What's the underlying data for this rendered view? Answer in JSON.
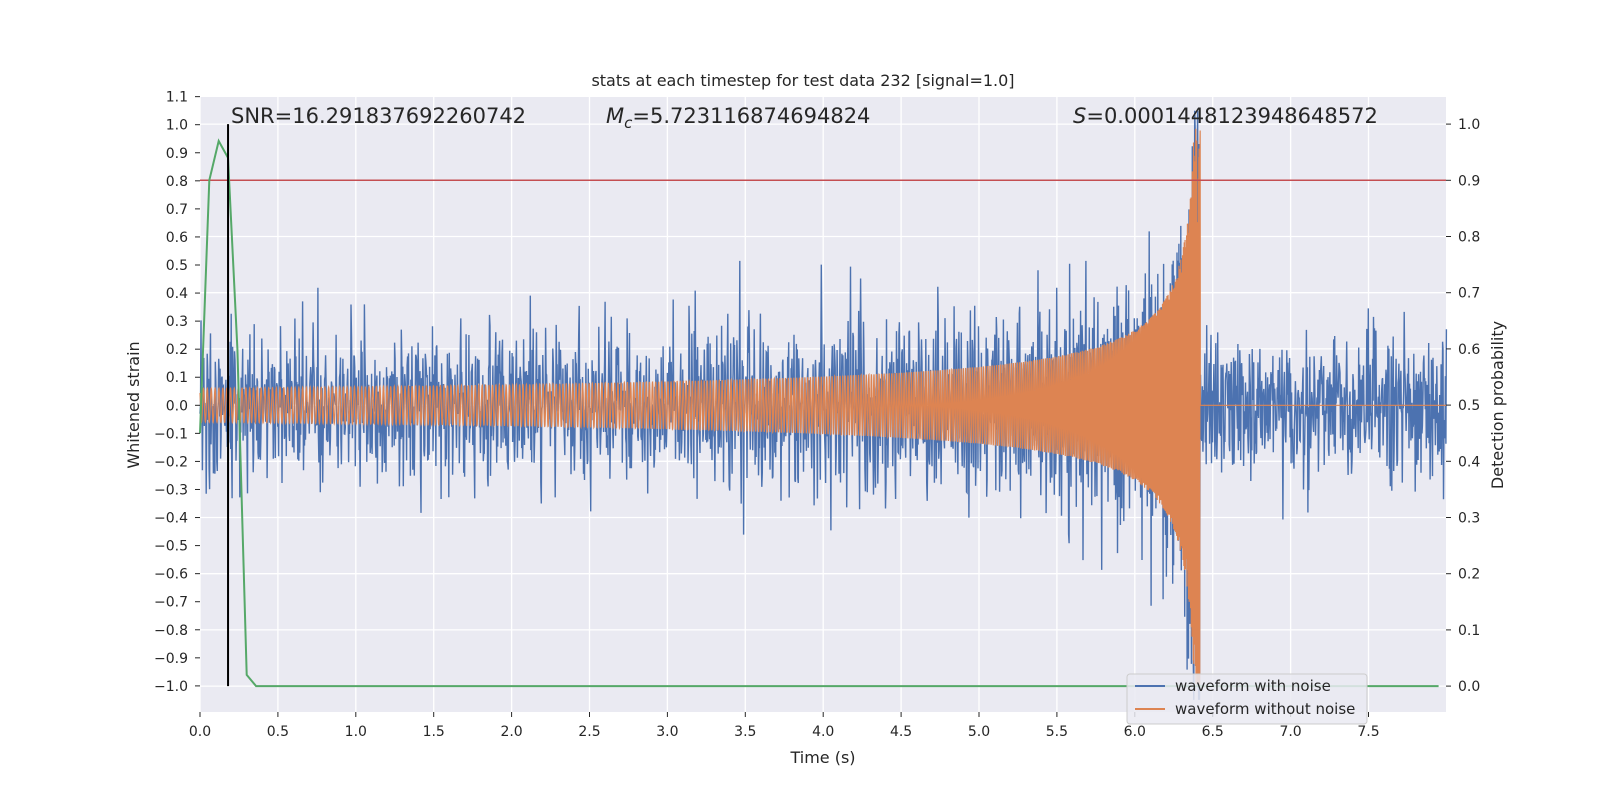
{
  "chart_data": {
    "type": "line",
    "title": "stats at each timestep for test data 232 [signal=1.0]",
    "xlabel": "Time (s)",
    "ylabel": "Whitened strain",
    "ylabel_right": "Detection probability",
    "xlim": [
      0.0,
      8.0
    ],
    "ylim": [
      -1.1,
      1.1
    ],
    "ylim_right": [
      -0.05,
      1.05
    ],
    "x_ticks": [
      "0.0",
      "0.5",
      "1.0",
      "1.5",
      "2.0",
      "2.5",
      "3.0",
      "3.5",
      "4.0",
      "4.5",
      "5.0",
      "5.5",
      "6.0",
      "6.5",
      "7.0",
      "7.5"
    ],
    "y_ticks": [
      "1.1",
      "1.0",
      "0.9",
      "0.8",
      "0.7",
      "0.6",
      "0.5",
      "0.4",
      "0.3",
      "0.2",
      "0.1",
      "0.0",
      "−0.1",
      "−0.2",
      "−0.3",
      "−0.4",
      "−0.5",
      "−0.6",
      "−0.7",
      "−0.8",
      "−0.9",
      "−1.0"
    ],
    "y_ticks_right": [
      "1.0",
      "0.9",
      "0.8",
      "0.7",
      "0.6",
      "0.5",
      "0.4",
      "0.3",
      "0.2",
      "0.1",
      "0.0"
    ],
    "grid": true,
    "legend_position": "lower-right",
    "annotations": {
      "snr": "SNR=16.291837692260742",
      "mc_symbol": "M",
      "mc_sub": "c",
      "mc_value": "=5.723116874694824",
      "s_symbol": "S",
      "s_value": "=0.0001448123948648572"
    },
    "series": [
      {
        "name": "waveform with noise",
        "color": "#4c72b0",
        "noise_amplitude": 0.3,
        "merger_time": 6.42
      },
      {
        "name": "waveform without noise",
        "color": "#dd8452",
        "start_amplitude": 0.06,
        "peak_amplitude": 1.0,
        "merger_time": 6.42
      }
    ],
    "detection_probability": {
      "color": "#55a868",
      "x": [
        0.0,
        0.06,
        0.12,
        0.18,
        0.24,
        0.3,
        0.36,
        7.95
      ],
      "y": [
        0.45,
        0.9,
        0.97,
        0.94,
        0.6,
        0.02,
        0.0,
        0.0
      ]
    },
    "threshold": {
      "value": 0.9,
      "color": "#c44e52"
    },
    "detection_marker": {
      "x": 0.18,
      "color": "#000000"
    }
  }
}
